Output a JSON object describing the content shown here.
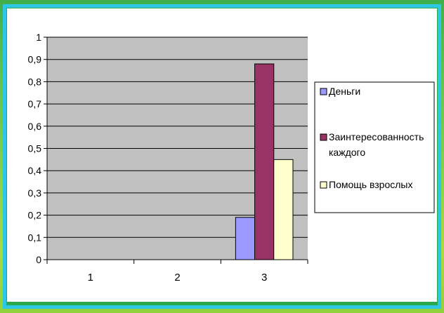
{
  "chart_data": {
    "type": "bar",
    "categories": [
      "1",
      "2",
      "3"
    ],
    "y_ticks": [
      "0",
      "0,1",
      "0,2",
      "0,3",
      "0,4",
      "0,5",
      "0,6",
      "0,7",
      "0,8",
      "0,9",
      "1"
    ],
    "ylim": [
      0,
      1
    ],
    "grid": true,
    "legend_position": "right",
    "series": [
      {
        "name": "Деньги",
        "values": [
          0,
          0,
          0.19
        ],
        "color": "#9999ff"
      },
      {
        "name": "Заинтересованность каждого",
        "name_lines": [
          "Заинтересованность",
          "каждого"
        ],
        "values": [
          0,
          0,
          0.88
        ],
        "color": "#993366"
      },
      {
        "name": "Помощь взрослых",
        "values": [
          0,
          0,
          0.45
        ],
        "color": "#ffffcc"
      }
    ],
    "plot_background": "#c0c0c0"
  }
}
